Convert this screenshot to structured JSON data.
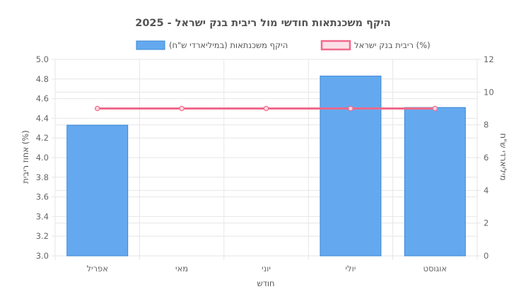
{
  "chart_data": {
    "type": "bar",
    "title": "היקף משכנתאות חודשי מול ריבית בנק ישראל - 2025",
    "xlabel": "חודש",
    "categories": [
      "אפריל",
      "מאי",
      "יוני",
      "יולי",
      "אוגוסט"
    ],
    "series": [
      {
        "name": "היקף משכנתאות (במיליארדי ש\"ח)",
        "type": "bar",
        "axis": "left",
        "values": [
          4.33,
          null,
          null,
          4.83,
          4.51
        ],
        "color": "#64a9ef",
        "border_color": "#3a86d6"
      },
      {
        "name": "ריבית בנק ישראל (%)",
        "type": "line",
        "axis": "right",
        "values": [
          9,
          9,
          9,
          9,
          9
        ],
        "color": "#f06a8b"
      }
    ],
    "y_left": {
      "label": "אחוז ריבית (%)",
      "ylim": [
        3.0,
        5.0
      ],
      "ticks": [
        "3.0",
        "3.2",
        "3.4",
        "3.6",
        "3.8",
        "4.0",
        "4.2",
        "4.4",
        "4.6",
        "4.8",
        "5.0"
      ]
    },
    "y_right": {
      "label": "מיליארדי ש\"ח",
      "ylim": [
        0,
        12
      ],
      "ticks": [
        "0",
        "2",
        "4",
        "6",
        "8",
        "10",
        "12"
      ]
    },
    "grid": true,
    "legend_position": "top"
  }
}
